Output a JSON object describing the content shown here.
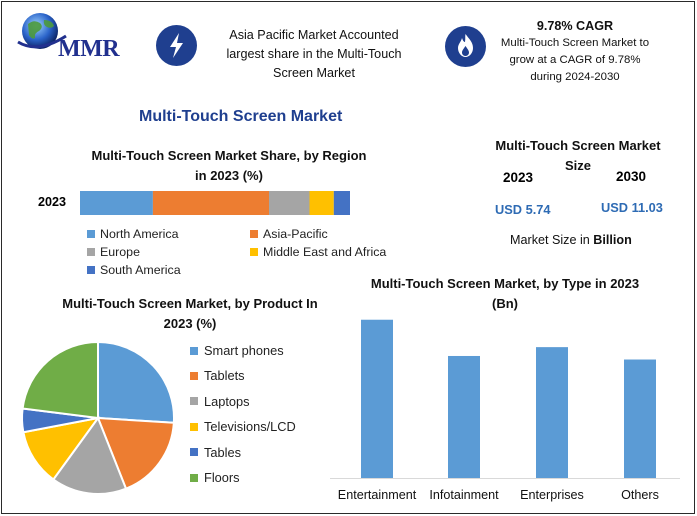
{
  "header": {
    "logo_text": "MMR",
    "info1": {
      "lines": [
        "Asia Pacific Market Accounted",
        "largest share in the Multi-Touch",
        "Screen Market"
      ]
    },
    "info2": {
      "title": "9.78% CAGR",
      "lines": [
        "Multi-Touch Screen Market to",
        "grow at a CAGR of 9.78%",
        "during 2024-2030"
      ]
    }
  },
  "main_title": "Multi-Touch Screen Market",
  "size_panel": {
    "title_line1": "Multi-Touch Screen Market",
    "title_line2": "Size",
    "year1": "2023",
    "year2": "2030",
    "value1": "USD 5.74",
    "value2": "USD 11.03",
    "note_prefix": "Market Size in ",
    "note_bold": "Billion"
  },
  "colors": {
    "north_america": "#5b9bd5",
    "asia_pacific": "#ed7d31",
    "europe": "#a5a5a5",
    "mea": "#ffc000",
    "south_america": "#4472c4",
    "floors": "#70ad47",
    "brand": "#1f3f8f"
  },
  "chart_data": [
    {
      "type": "bar",
      "orientation": "horizontal-stacked",
      "title_line1": "Multi-Touch Screen Market Share, by Region",
      "title_line2": "in 2023 (%)",
      "categories": [
        "2023"
      ],
      "series": [
        {
          "name": "North America",
          "values": [
            27
          ]
        },
        {
          "name": "Asia-Pacific",
          "values": [
            43
          ]
        },
        {
          "name": "Europe",
          "values": [
            15
          ]
        },
        {
          "name": "Middle East and Africa",
          "values": [
            9
          ]
        },
        {
          "name": "South America",
          "values": [
            6
          ]
        }
      ],
      "legend_position": "bottom"
    },
    {
      "type": "pie",
      "title_line1": "Multi-Touch Screen Market, by Product In",
      "title_line2": "2023 (%)",
      "slices": [
        {
          "name": "Smart phones",
          "value": 26
        },
        {
          "name": "Tablets",
          "value": 18
        },
        {
          "name": "Laptops",
          "value": 16
        },
        {
          "name": "Televisions/LCD",
          "value": 12
        },
        {
          "name": "Tables",
          "value": 5
        },
        {
          "name": "Floors",
          "value": 23
        }
      ],
      "legend_position": "right"
    },
    {
      "type": "bar",
      "title_line1": "Multi-Touch Screen Market, by Type in 2023",
      "title_line2": "(Bn)",
      "categories": [
        "Entertainment",
        "Infotainment",
        "Enterprises",
        "Others"
      ],
      "values": [
        1.79,
        1.38,
        1.48,
        1.34
      ],
      "ylim": [
        0,
        1.9
      ],
      "grid": false
    }
  ]
}
